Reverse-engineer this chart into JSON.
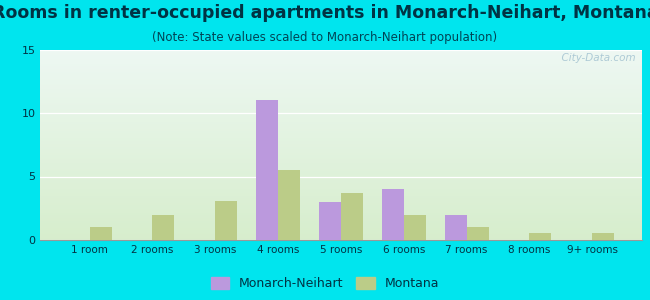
{
  "title": "Rooms in renter-occupied apartments in Monarch-Neihart, Montana",
  "subtitle": "(Note: State values scaled to Monarch-Neihart population)",
  "categories": [
    "1 room",
    "2 rooms",
    "3 rooms",
    "4 rooms",
    "5 rooms",
    "6 rooms",
    "7 rooms",
    "8 rooms",
    "9+ rooms"
  ],
  "monarch_values": [
    0,
    0,
    0,
    11,
    3,
    4,
    2,
    0,
    0
  ],
  "montana_values": [
    1,
    2,
    3.1,
    5.5,
    3.7,
    2,
    1,
    0.55,
    0.55
  ],
  "monarch_color": "#bb99dd",
  "montana_color": "#bbcc88",
  "ylim": [
    0,
    15
  ],
  "yticks": [
    0,
    5,
    10,
    15
  ],
  "outer_bg": "#00e5ee",
  "title_fontsize": 12.5,
  "subtitle_fontsize": 8.5,
  "bar_width": 0.35,
  "watermark": "  City-Data.com",
  "title_color": "#003344",
  "subtitle_color": "#004455",
  "tick_color": "#003344",
  "legend_color": "#003344"
}
